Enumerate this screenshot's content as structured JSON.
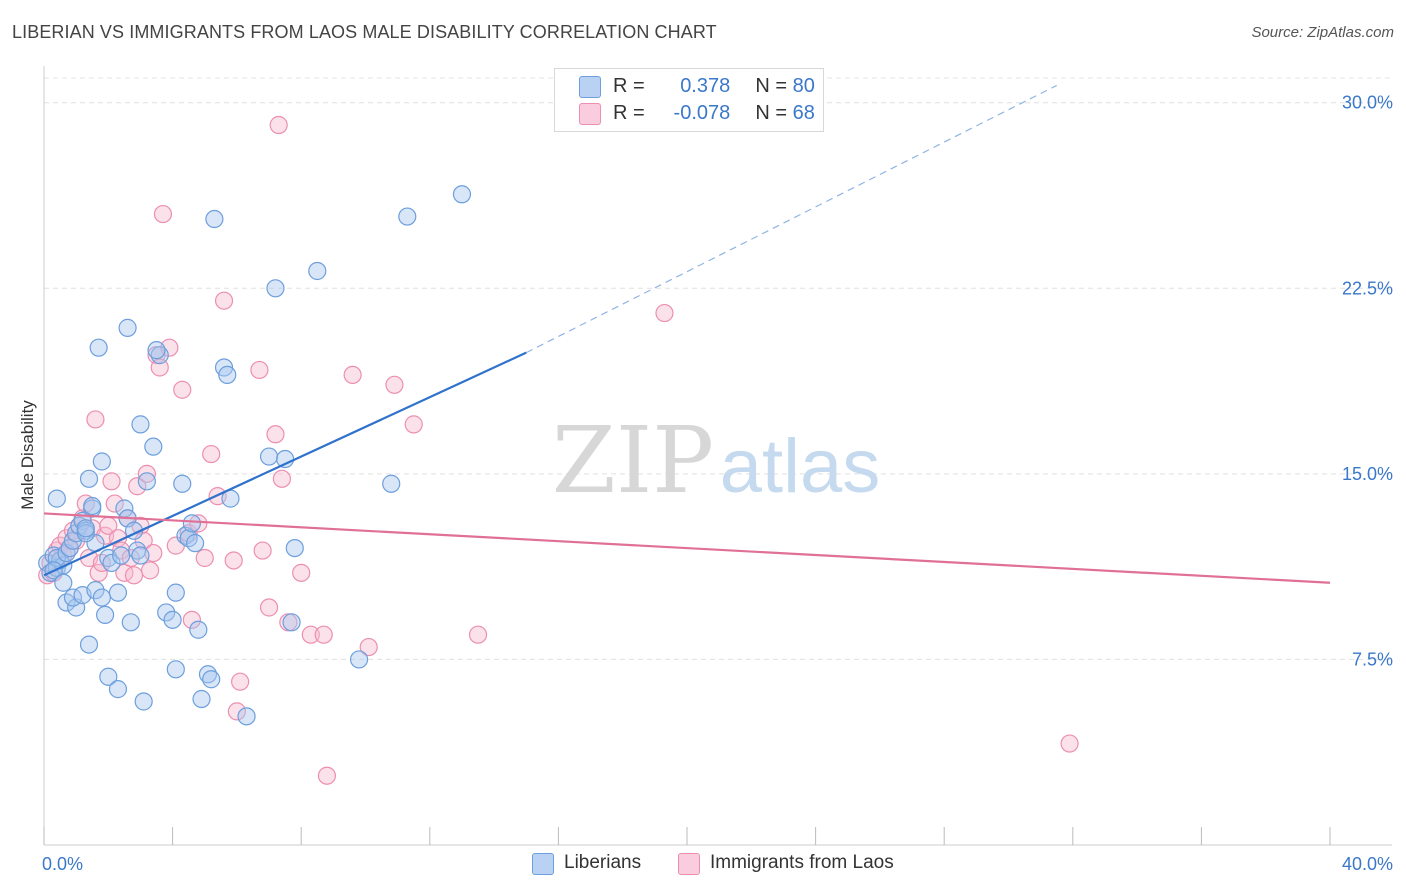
{
  "title": "LIBERIAN VS IMMIGRANTS FROM LAOS MALE DISABILITY CORRELATION CHART",
  "source": "Source: ZipAtlas.com",
  "watermark": {
    "part1": "ZIP",
    "part2": "atlas"
  },
  "colors": {
    "blue": "#3a78c9",
    "blue_fill": "#a9c8ef",
    "blue_stroke": "#6d9fdc",
    "pink": "#e07096",
    "pink_fill": "#f6bcd0",
    "pink_stroke": "#ec8fb0",
    "grid": "#dddddd",
    "axis_text": "#3a78c9"
  },
  "legend": {
    "r1_label": "R =",
    "r1_value": "0.378",
    "n1_label": "N =",
    "n1_value": "80",
    "r2_label": "R =",
    "r2_value": "-0.078",
    "n2_label": "N =",
    "n2_value": "68"
  },
  "bottom_legend": {
    "series1": "Liberians",
    "series2": "Immigrants from Laos"
  },
  "chart_data": {
    "type": "scatter",
    "title": "LIBERIAN VS IMMIGRANTS FROM LAOS MALE DISABILITY CORRELATION CHART",
    "xlabel": "",
    "ylabel": "Male Disability",
    "xlim": [
      0,
      40
    ],
    "ylim": [
      0,
      31
    ],
    "x_tick_labels": [
      "0.0%",
      "40.0%"
    ],
    "y_tick_labels": [
      "7.5%",
      "15.0%",
      "22.5%",
      "30.0%"
    ],
    "y_ticks": [
      7.5,
      15.0,
      22.5,
      30.0
    ],
    "grid": true,
    "legend_position": "top-center",
    "series": [
      {
        "name": "Liberians",
        "color": "#6d9fdc",
        "r": 0.378,
        "n": 80,
        "trend": {
          "x1": 0.0,
          "y1": 10.9,
          "x2": 15.0,
          "y2": 19.9,
          "dash_to_x": 31.5,
          "dash_to_y": 30.7
        },
        "points": [
          [
            0.1,
            11.4
          ],
          [
            0.2,
            11.0
          ],
          [
            0.3,
            11.7
          ],
          [
            0.4,
            11.2
          ],
          [
            0.5,
            11.5
          ],
          [
            0.6,
            11.3
          ],
          [
            0.4,
            11.6
          ],
          [
            0.7,
            11.8
          ],
          [
            0.3,
            11.1
          ],
          [
            0.8,
            12.0
          ],
          [
            0.9,
            12.3
          ],
          [
            1.0,
            12.6
          ],
          [
            1.1,
            12.9
          ],
          [
            1.2,
            13.1
          ],
          [
            1.3,
            12.7
          ],
          [
            1.4,
            14.8
          ],
          [
            1.5,
            13.6
          ],
          [
            1.6,
            12.2
          ],
          [
            1.8,
            15.5
          ],
          [
            0.4,
            14.0
          ],
          [
            0.6,
            10.6
          ],
          [
            0.7,
            9.8
          ],
          [
            1.0,
            9.6
          ],
          [
            0.9,
            10.0
          ],
          [
            1.2,
            10.1
          ],
          [
            1.3,
            12.6
          ],
          [
            1.6,
            10.3
          ],
          [
            1.8,
            10.0
          ],
          [
            1.9,
            9.3
          ],
          [
            2.0,
            11.6
          ],
          [
            2.1,
            11.4
          ],
          [
            2.3,
            10.2
          ],
          [
            2.4,
            11.7
          ],
          [
            2.5,
            13.6
          ],
          [
            2.6,
            13.2
          ],
          [
            2.8,
            12.7
          ],
          [
            2.9,
            11.9
          ],
          [
            3.0,
            11.7
          ],
          [
            3.2,
            14.7
          ],
          [
            3.4,
            16.1
          ],
          [
            3.6,
            19.8
          ],
          [
            3.8,
            9.4
          ],
          [
            4.0,
            9.1
          ],
          [
            4.1,
            10.2
          ],
          [
            4.3,
            14.6
          ],
          [
            4.4,
            12.5
          ],
          [
            4.5,
            12.4
          ],
          [
            4.6,
            13.0
          ],
          [
            4.7,
            12.2
          ],
          [
            4.8,
            8.7
          ],
          [
            5.1,
            6.9
          ],
          [
            5.2,
            6.7
          ],
          [
            5.3,
            25.3
          ],
          [
            5.6,
            19.3
          ],
          [
            5.7,
            19.0
          ],
          [
            5.8,
            14.0
          ],
          [
            6.3,
            5.2
          ],
          [
            7.0,
            15.7
          ],
          [
            7.5,
            15.6
          ],
          [
            7.7,
            9.0
          ],
          [
            7.8,
            12.0
          ],
          [
            8.5,
            23.2
          ],
          [
            9.8,
            7.5
          ],
          [
            10.8,
            14.6
          ],
          [
            11.3,
            25.4
          ],
          [
            13.0,
            26.3
          ],
          [
            7.2,
            22.5
          ],
          [
            2.6,
            20.9
          ],
          [
            1.7,
            20.1
          ],
          [
            3.0,
            17.0
          ],
          [
            3.5,
            20.0
          ],
          [
            1.4,
            8.1
          ],
          [
            2.0,
            6.8
          ],
          [
            2.3,
            6.3
          ],
          [
            3.1,
            5.8
          ],
          [
            4.1,
            7.1
          ],
          [
            4.9,
            5.9
          ],
          [
            1.5,
            13.7
          ],
          [
            1.3,
            12.8
          ],
          [
            2.7,
            9.0
          ]
        ]
      },
      {
        "name": "Immigrants from Laos",
        "color": "#ec8fb0",
        "r": -0.078,
        "n": 68,
        "trend": {
          "x1": 0.0,
          "y1": 13.4,
          "x2": 40.0,
          "y2": 10.6
        },
        "points": [
          [
            0.1,
            10.9
          ],
          [
            0.2,
            11.4
          ],
          [
            0.3,
            11.0
          ],
          [
            0.4,
            11.9
          ],
          [
            0.5,
            12.1
          ],
          [
            0.6,
            11.7
          ],
          [
            0.7,
            12.4
          ],
          [
            0.8,
            12.0
          ],
          [
            0.9,
            12.7
          ],
          [
            1.0,
            12.3
          ],
          [
            1.1,
            12.9
          ],
          [
            1.2,
            13.2
          ],
          [
            1.3,
            13.8
          ],
          [
            1.4,
            11.6
          ],
          [
            1.5,
            12.8
          ],
          [
            1.6,
            17.2
          ],
          [
            1.7,
            11.0
          ],
          [
            1.8,
            11.4
          ],
          [
            1.9,
            12.5
          ],
          [
            2.0,
            12.9
          ],
          [
            2.1,
            14.7
          ],
          [
            2.2,
            13.8
          ],
          [
            2.3,
            12.4
          ],
          [
            2.4,
            11.9
          ],
          [
            2.5,
            11.0
          ],
          [
            2.6,
            13.2
          ],
          [
            2.7,
            11.6
          ],
          [
            2.8,
            10.9
          ],
          [
            2.9,
            14.5
          ],
          [
            3.0,
            12.9
          ],
          [
            3.1,
            12.3
          ],
          [
            3.2,
            15.0
          ],
          [
            3.3,
            11.1
          ],
          [
            3.4,
            11.8
          ],
          [
            3.5,
            19.8
          ],
          [
            3.6,
            19.3
          ],
          [
            3.7,
            25.5
          ],
          [
            3.9,
            20.1
          ],
          [
            4.1,
            12.1
          ],
          [
            4.3,
            18.4
          ],
          [
            4.5,
            12.6
          ],
          [
            4.6,
            9.1
          ],
          [
            4.8,
            13.0
          ],
          [
            5.0,
            11.6
          ],
          [
            5.2,
            15.8
          ],
          [
            5.4,
            14.1
          ],
          [
            5.6,
            22.0
          ],
          [
            5.9,
            11.5
          ],
          [
            6.1,
            6.6
          ],
          [
            6.0,
            5.4
          ],
          [
            6.7,
            19.2
          ],
          [
            6.8,
            11.9
          ],
          [
            7.0,
            9.6
          ],
          [
            7.2,
            16.6
          ],
          [
            7.4,
            14.8
          ],
          [
            7.6,
            9.0
          ],
          [
            8.0,
            11.0
          ],
          [
            8.3,
            8.5
          ],
          [
            8.7,
            8.5
          ],
          [
            9.6,
            19.0
          ],
          [
            10.1,
            8.0
          ],
          [
            10.9,
            18.6
          ],
          [
            11.5,
            17.0
          ],
          [
            13.5,
            8.5
          ],
          [
            19.3,
            21.5
          ],
          [
            31.9,
            4.1
          ],
          [
            8.8,
            2.8
          ],
          [
            7.3,
            29.1
          ]
        ]
      }
    ]
  }
}
